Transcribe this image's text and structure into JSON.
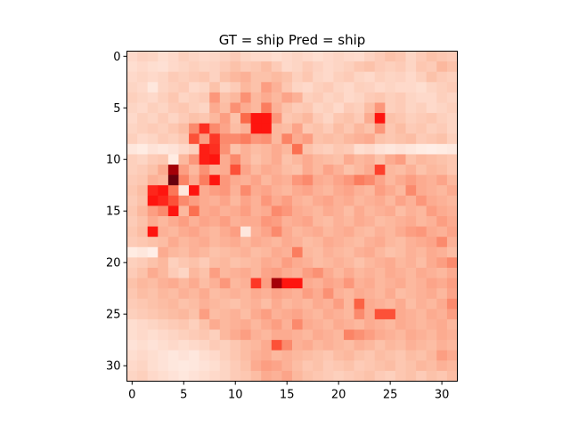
{
  "chart_data": {
    "type": "heatmap",
    "title": "GT = ship Pred = ship",
    "xlabel": "",
    "ylabel": "",
    "rows": 32,
    "cols": 32,
    "xlim": [
      -0.5,
      31.5
    ],
    "ylim": [
      31.5,
      -0.5
    ],
    "x_ticks": [
      0,
      5,
      10,
      15,
      20,
      25,
      30
    ],
    "y_ticks": [
      0,
      5,
      10,
      15,
      20,
      25,
      30
    ],
    "x_tick_labels": [
      "0",
      "5",
      "10",
      "15",
      "20",
      "25",
      "30"
    ],
    "y_tick_labels": [
      "0",
      "5",
      "10",
      "15",
      "20",
      "25",
      "30"
    ],
    "colormap": "Reds",
    "colormap_stops": [
      "#fff5f0",
      "#fcbba1",
      "#fb6a4a",
      "#ff0000",
      "#67000d"
    ],
    "grid": false,
    "values": [
      [
        0.12,
        0.15,
        0.14,
        0.1,
        0.12,
        0.16,
        0.14,
        0.12,
        0.13,
        0.15,
        0.18,
        0.14,
        0.12,
        0.12,
        0.1,
        0.12,
        0.14,
        0.12,
        0.1,
        0.12,
        0.14,
        0.12,
        0.11,
        0.15,
        0.18,
        0.22,
        0.2,
        0.14,
        0.18,
        0.22,
        0.2,
        0.18
      ],
      [
        0.1,
        0.12,
        0.1,
        0.09,
        0.12,
        0.14,
        0.16,
        0.14,
        0.15,
        0.18,
        0.22,
        0.18,
        0.2,
        0.24,
        0.18,
        0.12,
        0.14,
        0.18,
        0.15,
        0.12,
        0.14,
        0.16,
        0.2,
        0.22,
        0.18,
        0.16,
        0.18,
        0.14,
        0.2,
        0.18,
        0.26,
        0.22
      ],
      [
        0.12,
        0.14,
        0.12,
        0.14,
        0.18,
        0.16,
        0.18,
        0.2,
        0.15,
        0.22,
        0.26,
        0.28,
        0.22,
        0.22,
        0.25,
        0.22,
        0.16,
        0.2,
        0.14,
        0.12,
        0.16,
        0.18,
        0.14,
        0.12,
        0.16,
        0.14,
        0.15,
        0.12,
        0.16,
        0.22,
        0.18,
        0.16
      ],
      [
        0.14,
        0.12,
        0.06,
        0.14,
        0.16,
        0.18,
        0.12,
        0.14,
        0.22,
        0.14,
        0.18,
        0.26,
        0.22,
        0.34,
        0.28,
        0.2,
        0.14,
        0.12,
        0.16,
        0.18,
        0.14,
        0.12,
        0.16,
        0.15,
        0.12,
        0.14,
        0.12,
        0.12,
        0.1,
        0.14,
        0.16,
        0.18
      ],
      [
        0.16,
        0.14,
        0.12,
        0.16,
        0.2,
        0.14,
        0.16,
        0.18,
        0.36,
        0.22,
        0.26,
        0.38,
        0.26,
        0.3,
        0.26,
        0.32,
        0.28,
        0.16,
        0.18,
        0.14,
        0.16,
        0.12,
        0.14,
        0.18,
        0.2,
        0.16,
        0.18,
        0.14,
        0.12,
        0.12,
        0.16,
        0.14
      ],
      [
        0.14,
        0.12,
        0.16,
        0.14,
        0.18,
        0.2,
        0.16,
        0.14,
        0.3,
        0.24,
        0.38,
        0.3,
        0.26,
        0.44,
        0.28,
        0.22,
        0.18,
        0.2,
        0.14,
        0.16,
        0.12,
        0.18,
        0.16,
        0.24,
        0.36,
        0.16,
        0.18,
        0.14,
        0.16,
        0.12,
        0.14,
        0.16
      ],
      [
        0.12,
        0.16,
        0.14,
        0.18,
        0.14,
        0.18,
        0.22,
        0.2,
        0.26,
        0.34,
        0.22,
        0.5,
        0.7,
        0.7,
        0.36,
        0.2,
        0.22,
        0.26,
        0.18,
        0.14,
        0.2,
        0.22,
        0.18,
        0.3,
        0.7,
        0.22,
        0.2,
        0.16,
        0.18,
        0.2,
        0.16,
        0.14
      ],
      [
        0.14,
        0.16,
        0.18,
        0.16,
        0.2,
        0.24,
        0.4,
        0.64,
        0.4,
        0.32,
        0.24,
        0.28,
        0.7,
        0.7,
        0.26,
        0.24,
        0.32,
        0.2,
        0.22,
        0.18,
        0.24,
        0.2,
        0.26,
        0.22,
        0.36,
        0.2,
        0.24,
        0.18,
        0.2,
        0.16,
        0.18,
        0.14
      ],
      [
        0.16,
        0.12,
        0.14,
        0.18,
        0.16,
        0.2,
        0.56,
        0.34,
        0.62,
        0.4,
        0.4,
        0.44,
        0.36,
        0.38,
        0.26,
        0.42,
        0.3,
        0.34,
        0.22,
        0.24,
        0.22,
        0.26,
        0.28,
        0.3,
        0.22,
        0.2,
        0.22,
        0.24,
        0.18,
        0.2,
        0.22,
        0.16
      ],
      [
        0.06,
        0.04,
        0.08,
        0.06,
        0.08,
        0.12,
        0.16,
        0.68,
        0.64,
        0.38,
        0.22,
        0.28,
        0.24,
        0.26,
        0.3,
        0.26,
        0.48,
        0.22,
        0.18,
        0.16,
        0.2,
        0.18,
        0.1,
        0.12,
        0.08,
        0.06,
        0.08,
        0.06,
        0.04,
        0.03,
        0.04,
        0.05
      ],
      [
        0.16,
        0.14,
        0.18,
        0.2,
        0.04,
        0.26,
        0.36,
        0.68,
        0.7,
        0.3,
        0.4,
        0.28,
        0.22,
        0.26,
        0.3,
        0.22,
        0.26,
        0.3,
        0.26,
        0.24,
        0.22,
        0.3,
        0.26,
        0.28,
        0.22,
        0.3,
        0.34,
        0.22,
        0.26,
        0.24,
        0.22,
        0.2
      ],
      [
        0.16,
        0.18,
        0.22,
        0.3,
        0.9,
        0.34,
        0.26,
        0.38,
        0.28,
        0.3,
        0.56,
        0.32,
        0.26,
        0.3,
        0.28,
        0.24,
        0.22,
        0.3,
        0.26,
        0.32,
        0.28,
        0.22,
        0.26,
        0.3,
        0.6,
        0.26,
        0.24,
        0.28,
        0.22,
        0.26,
        0.24,
        0.2
      ],
      [
        0.18,
        0.2,
        0.28,
        0.26,
        1.0,
        0.42,
        0.3,
        0.44,
        0.7,
        0.36,
        0.3,
        0.28,
        0.32,
        0.26,
        0.3,
        0.28,
        0.36,
        0.4,
        0.3,
        0.28,
        0.32,
        0.36,
        0.44,
        0.4,
        0.32,
        0.26,
        0.3,
        0.34,
        0.3,
        0.28,
        0.32,
        0.26
      ],
      [
        0.2,
        0.24,
        0.66,
        0.7,
        0.46,
        0.06,
        0.7,
        0.3,
        0.34,
        0.36,
        0.28,
        0.4,
        0.3,
        0.32,
        0.28,
        0.26,
        0.3,
        0.32,
        0.28,
        0.26,
        0.3,
        0.32,
        0.28,
        0.26,
        0.34,
        0.3,
        0.26,
        0.4,
        0.3,
        0.28,
        0.26,
        0.3
      ],
      [
        0.18,
        0.22,
        0.7,
        0.66,
        0.56,
        0.4,
        0.34,
        0.3,
        0.28,
        0.32,
        0.26,
        0.32,
        0.28,
        0.36,
        0.3,
        0.34,
        0.28,
        0.26,
        0.3,
        0.32,
        0.28,
        0.3,
        0.26,
        0.28,
        0.3,
        0.26,
        0.32,
        0.28,
        0.36,
        0.3,
        0.28,
        0.26
      ],
      [
        0.2,
        0.26,
        0.34,
        0.4,
        0.7,
        0.26,
        0.48,
        0.3,
        0.32,
        0.28,
        0.3,
        0.34,
        0.28,
        0.3,
        0.4,
        0.36,
        0.3,
        0.28,
        0.26,
        0.3,
        0.28,
        0.24,
        0.3,
        0.26,
        0.28,
        0.3,
        0.24,
        0.28,
        0.26,
        0.34,
        0.3,
        0.28
      ],
      [
        0.18,
        0.22,
        0.3,
        0.26,
        0.3,
        0.34,
        0.28,
        0.32,
        0.3,
        0.34,
        0.28,
        0.3,
        0.3,
        0.36,
        0.34,
        0.28,
        0.3,
        0.32,
        0.26,
        0.24,
        0.28,
        0.26,
        0.3,
        0.28,
        0.24,
        0.26,
        0.28,
        0.3,
        0.26,
        0.28,
        0.34,
        0.3
      ],
      [
        0.2,
        0.24,
        0.7,
        0.28,
        0.26,
        0.3,
        0.32,
        0.28,
        0.26,
        0.3,
        0.34,
        0.06,
        0.28,
        0.32,
        0.4,
        0.3,
        0.26,
        0.28,
        0.3,
        0.26,
        0.28,
        0.3,
        0.26,
        0.24,
        0.28,
        0.26,
        0.3,
        0.34,
        0.36,
        0.3,
        0.28,
        0.32
      ],
      [
        0.18,
        0.2,
        0.22,
        0.24,
        0.3,
        0.26,
        0.28,
        0.3,
        0.26,
        0.28,
        0.3,
        0.26,
        0.3,
        0.28,
        0.26,
        0.3,
        0.28,
        0.24,
        0.26,
        0.3,
        0.28,
        0.26,
        0.24,
        0.28,
        0.3,
        0.26,
        0.24,
        0.28,
        0.3,
        0.32,
        0.4,
        0.28
      ],
      [
        0.04,
        0.06,
        0.03,
        0.3,
        0.26,
        0.24,
        0.28,
        0.26,
        0.22,
        0.24,
        0.26,
        0.28,
        0.24,
        0.26,
        0.3,
        0.28,
        0.44,
        0.26,
        0.24,
        0.28,
        0.26,
        0.24,
        0.28,
        0.3,
        0.26,
        0.22,
        0.24,
        0.28,
        0.26,
        0.3,
        0.28,
        0.24
      ],
      [
        0.16,
        0.18,
        0.22,
        0.26,
        0.16,
        0.2,
        0.22,
        0.18,
        0.24,
        0.26,
        0.22,
        0.24,
        0.26,
        0.3,
        0.28,
        0.34,
        0.3,
        0.28,
        0.24,
        0.26,
        0.28,
        0.26,
        0.22,
        0.26,
        0.28,
        0.3,
        0.26,
        0.28,
        0.24,
        0.3,
        0.34,
        0.4
      ],
      [
        0.18,
        0.22,
        0.3,
        0.26,
        0.18,
        0.14,
        0.26,
        0.22,
        0.34,
        0.26,
        0.28,
        0.3,
        0.26,
        0.32,
        0.34,
        0.3,
        0.28,
        0.34,
        0.38,
        0.3,
        0.26,
        0.3,
        0.26,
        0.28,
        0.26,
        0.3,
        0.28,
        0.26,
        0.3,
        0.28,
        0.26,
        0.3
      ],
      [
        0.22,
        0.26,
        0.24,
        0.28,
        0.3,
        0.26,
        0.3,
        0.24,
        0.28,
        0.36,
        0.26,
        0.28,
        0.62,
        0.34,
        0.9,
        0.7,
        0.7,
        0.3,
        0.28,
        0.32,
        0.3,
        0.36,
        0.28,
        0.3,
        0.26,
        0.28,
        0.3,
        0.26,
        0.28,
        0.32,
        0.3,
        0.34
      ],
      [
        0.2,
        0.24,
        0.22,
        0.26,
        0.24,
        0.28,
        0.26,
        0.3,
        0.24,
        0.26,
        0.28,
        0.26,
        0.3,
        0.28,
        0.32,
        0.3,
        0.28,
        0.34,
        0.3,
        0.38,
        0.28,
        0.26,
        0.3,
        0.28,
        0.26,
        0.3,
        0.24,
        0.26,
        0.28,
        0.3,
        0.26,
        0.32
      ],
      [
        0.18,
        0.2,
        0.22,
        0.24,
        0.26,
        0.22,
        0.24,
        0.28,
        0.26,
        0.24,
        0.22,
        0.26,
        0.28,
        0.24,
        0.3,
        0.26,
        0.28,
        0.26,
        0.3,
        0.28,
        0.34,
        0.26,
        0.52,
        0.3,
        0.28,
        0.26,
        0.3,
        0.24,
        0.28,
        0.26,
        0.3,
        0.4
      ],
      [
        0.16,
        0.18,
        0.2,
        0.22,
        0.24,
        0.26,
        0.22,
        0.34,
        0.24,
        0.26,
        0.28,
        0.24,
        0.3,
        0.34,
        0.28,
        0.3,
        0.32,
        0.28,
        0.26,
        0.3,
        0.28,
        0.26,
        0.4,
        0.3,
        0.56,
        0.56,
        0.3,
        0.28,
        0.26,
        0.3,
        0.28,
        0.34
      ],
      [
        0.1,
        0.12,
        0.14,
        0.16,
        0.18,
        0.2,
        0.16,
        0.22,
        0.3,
        0.26,
        0.28,
        0.3,
        0.26,
        0.3,
        0.34,
        0.28,
        0.4,
        0.3,
        0.28,
        0.26,
        0.3,
        0.28,
        0.26,
        0.3,
        0.28,
        0.26,
        0.3,
        0.28,
        0.26,
        0.28,
        0.3,
        0.26
      ],
      [
        0.1,
        0.12,
        0.1,
        0.12,
        0.14,
        0.16,
        0.18,
        0.2,
        0.16,
        0.26,
        0.3,
        0.34,
        0.28,
        0.26,
        0.3,
        0.3,
        0.28,
        0.26,
        0.3,
        0.28,
        0.26,
        0.42,
        0.38,
        0.34,
        0.3,
        0.28,
        0.26,
        0.3,
        0.28,
        0.26,
        0.3,
        0.28
      ],
      [
        0.08,
        0.1,
        0.08,
        0.1,
        0.12,
        0.1,
        0.12,
        0.14,
        0.18,
        0.16,
        0.2,
        0.24,
        0.26,
        0.3,
        0.56,
        0.4,
        0.28,
        0.3,
        0.26,
        0.28,
        0.26,
        0.24,
        0.28,
        0.26,
        0.22,
        0.26,
        0.24,
        0.28,
        0.26,
        0.24,
        0.28,
        0.26
      ],
      [
        0.1,
        0.12,
        0.1,
        0.08,
        0.06,
        0.08,
        0.06,
        0.1,
        0.12,
        0.16,
        0.2,
        0.24,
        0.28,
        0.3,
        0.26,
        0.28,
        0.26,
        0.24,
        0.22,
        0.2,
        0.24,
        0.26,
        0.22,
        0.2,
        0.24,
        0.22,
        0.2,
        0.24,
        0.22,
        0.26,
        0.34,
        0.3
      ],
      [
        0.12,
        0.14,
        0.1,
        0.08,
        0.06,
        0.05,
        0.06,
        0.08,
        0.1,
        0.14,
        0.18,
        0.22,
        0.3,
        0.34,
        0.32,
        0.28,
        0.24,
        0.2,
        0.22,
        0.18,
        0.2,
        0.22,
        0.18,
        0.2,
        0.22,
        0.24,
        0.2,
        0.22,
        0.26,
        0.24,
        0.28,
        0.26
      ],
      [
        0.14,
        0.16,
        0.12,
        0.1,
        0.08,
        0.06,
        0.08,
        0.1,
        0.12,
        0.14,
        0.18,
        0.2,
        0.24,
        0.3,
        0.28,
        0.32,
        0.26,
        0.22,
        0.2,
        0.18,
        0.16,
        0.18,
        0.2,
        0.22,
        0.18,
        0.16,
        0.2,
        0.22,
        0.18,
        0.22,
        0.2,
        0.24
      ]
    ]
  }
}
